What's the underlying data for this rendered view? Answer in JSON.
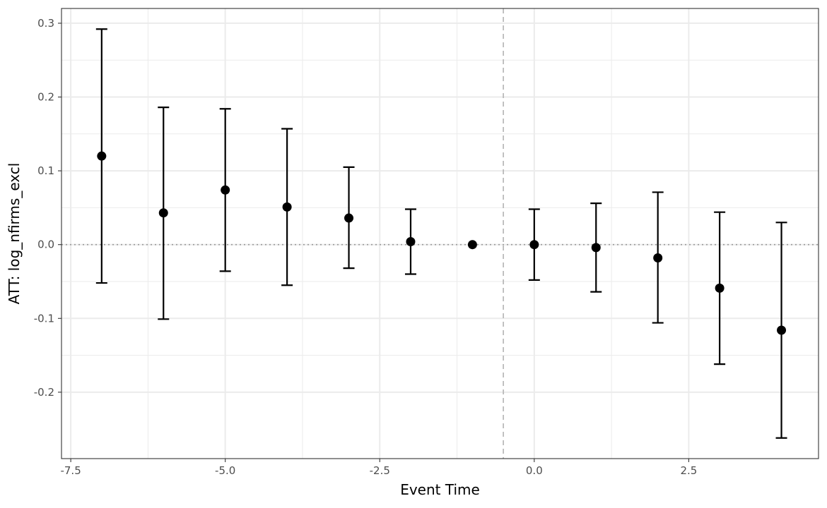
{
  "chart_data": {
    "type": "scatter",
    "subtype": "event-study coefficient plot with error bars",
    "xlabel": "Event Time",
    "ylabel": "ATT: log_nfirms_excl",
    "xlim": [
      -7.65,
      4.6
    ],
    "ylim": [
      -0.29,
      0.32
    ],
    "x_ticks": [
      -7.5,
      -5.0,
      -2.5,
      0.0,
      2.5
    ],
    "x_tick_labels": [
      "-7.5",
      "-5.0",
      "-2.5",
      "0.0",
      "2.5"
    ],
    "y_ticks": [
      -0.2,
      -0.1,
      0.0,
      0.1,
      0.2,
      0.3
    ],
    "y_tick_labels": [
      "-0.2",
      "-0.1",
      "0.0",
      "0.1",
      "0.2",
      "0.3"
    ],
    "grid": true,
    "reference_lines": [
      {
        "axis": "y",
        "value": 0,
        "style": "dotted",
        "color": "#999999"
      },
      {
        "axis": "x",
        "value": -0.5,
        "style": "dashed",
        "color": "#b3b3b3"
      }
    ],
    "points": [
      {
        "x": -7,
        "y": 0.12,
        "lower": -0.052,
        "upper": 0.292
      },
      {
        "x": -6,
        "y": 0.043,
        "lower": -0.101,
        "upper": 0.186
      },
      {
        "x": -5,
        "y": 0.074,
        "lower": -0.036,
        "upper": 0.184
      },
      {
        "x": -4,
        "y": 0.051,
        "lower": -0.055,
        "upper": 0.157
      },
      {
        "x": -3,
        "y": 0.036,
        "lower": -0.032,
        "upper": 0.105
      },
      {
        "x": -2,
        "y": 0.004,
        "lower": -0.04,
        "upper": 0.048
      },
      {
        "x": -1,
        "y": 0.0,
        "lower": null,
        "upper": null
      },
      {
        "x": 0,
        "y": 0.0,
        "lower": -0.048,
        "upper": 0.048
      },
      {
        "x": 1,
        "y": -0.004,
        "lower": -0.064,
        "upper": 0.056
      },
      {
        "x": 2,
        "y": -0.018,
        "lower": -0.106,
        "upper": 0.071
      },
      {
        "x": 3,
        "y": -0.059,
        "lower": -0.162,
        "upper": 0.044
      },
      {
        "x": 4,
        "y": -0.116,
        "lower": -0.262,
        "upper": 0.03
      }
    ],
    "colors": {
      "points": "#000000",
      "grid": "#ebebeb",
      "panel_border": "#333333"
    }
  }
}
